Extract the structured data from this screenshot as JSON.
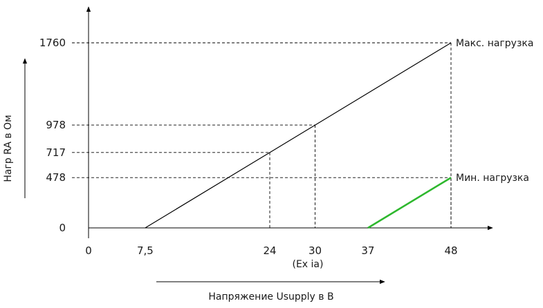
{
  "chart_data": {
    "type": "line",
    "xlabel": "Напряжение Usupply в В",
    "ylabel": "Нагр RA в Ом",
    "x_ticks": [
      "0",
      "7,5",
      "24",
      "30",
      "37",
      "48"
    ],
    "x_tick_note": "(Ex ia)",
    "y_ticks": [
      "0",
      "478",
      "717",
      "978",
      "1760"
    ],
    "series": [
      {
        "name": "Макс. нагрузка",
        "color": "#000000",
        "x": [
          7.5,
          48
        ],
        "y": [
          0,
          1760
        ]
      },
      {
        "name": "Мин. нагрузка",
        "color": "#2eb82e",
        "x": [
          37,
          48
        ],
        "y": [
          0,
          478
        ]
      }
    ],
    "reference_points": [
      {
        "x": 24,
        "y": 717
      },
      {
        "x": 30,
        "y": 978
      },
      {
        "x": 48,
        "y": 1760
      },
      {
        "x": 48,
        "y": 478
      }
    ],
    "xlim": [
      0,
      48
    ],
    "ylim": [
      0,
      1760
    ],
    "grid": false
  }
}
